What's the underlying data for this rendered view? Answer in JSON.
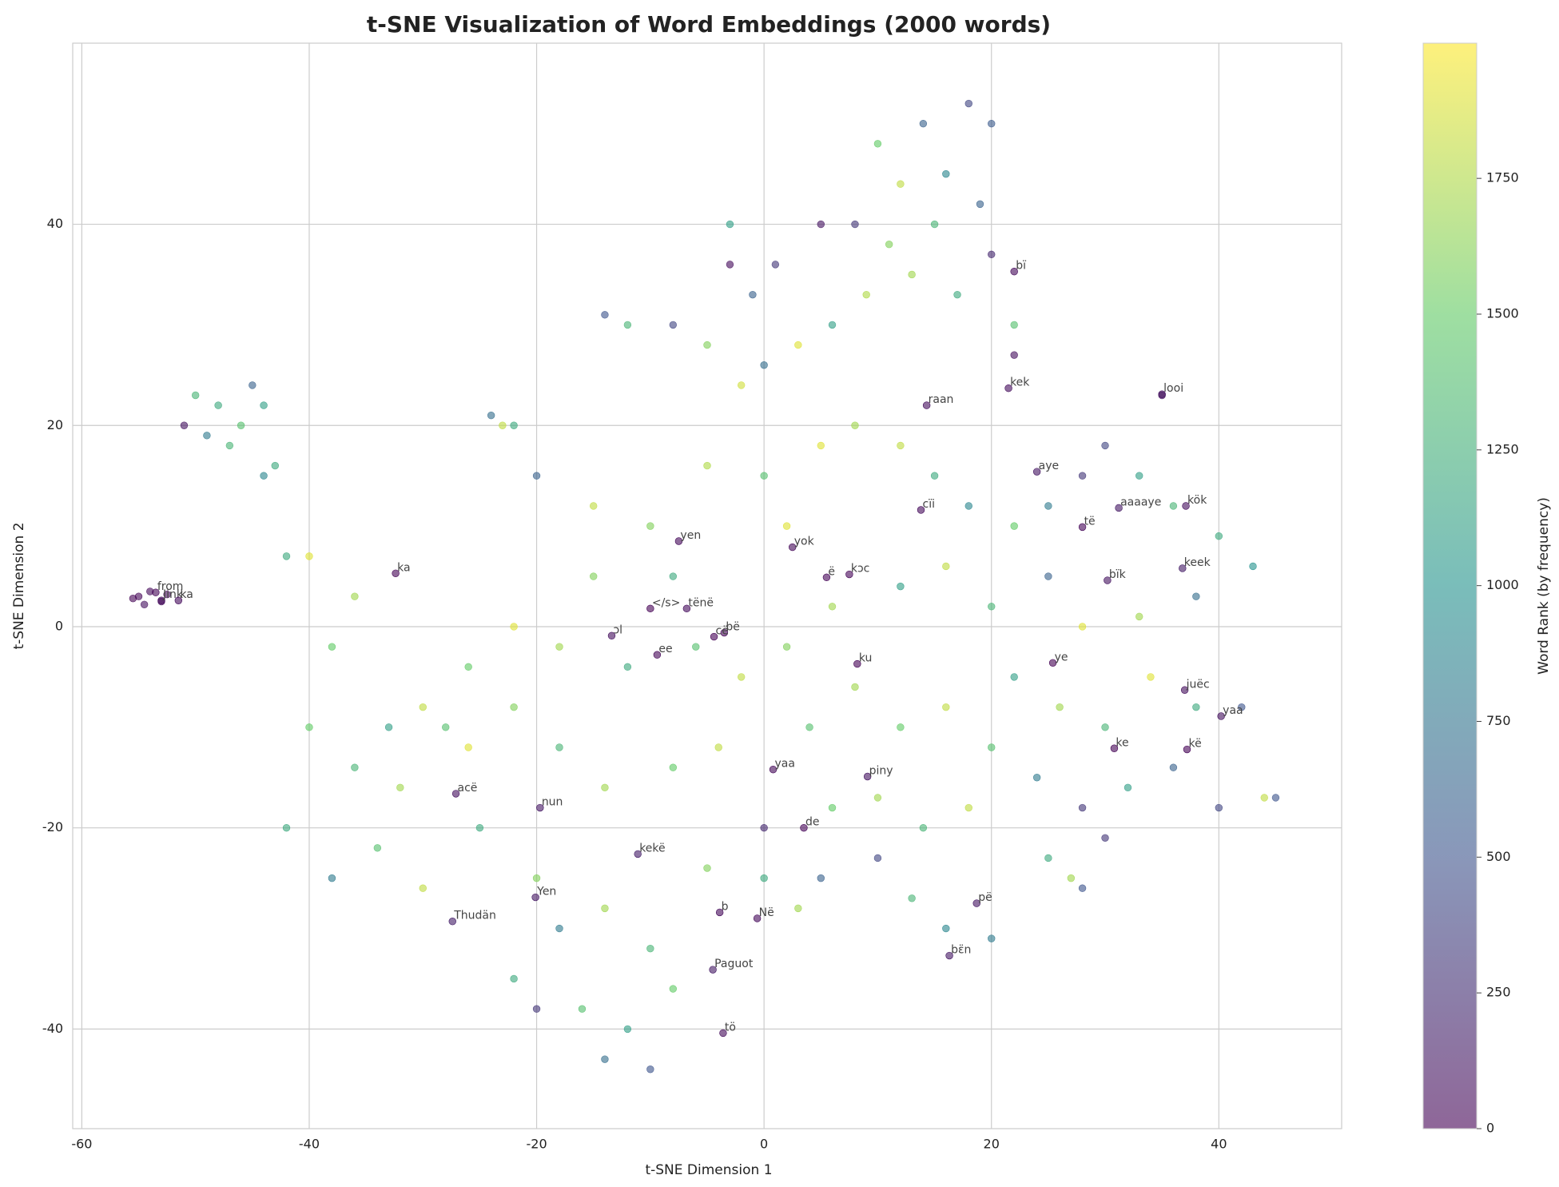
{
  "chart_data": {
    "type": "scatter",
    "title": "t-SNE Visualization of Word Embeddings (2000 words)",
    "xlabel": "t-SNE Dimension 1",
    "ylabel": "t-SNE Dimension 2",
    "colorbar_label": "Word Rank (by frequency)",
    "colormap": "viridis",
    "alpha": 0.6,
    "grid": true,
    "xlim": [
      -60.8,
      50.8
    ],
    "ylim": [
      -49.9,
      58
    ],
    "clim": [
      0,
      1999
    ],
    "xticks": [
      -60,
      -40,
      -20,
      0,
      20,
      40
    ],
    "yticks": [
      -40,
      -20,
      0,
      20,
      40
    ],
    "cticks": [
      0,
      250,
      500,
      750,
      1000,
      1250,
      1500,
      1750
    ],
    "x": [
      10,
      14,
      18,
      20,
      16,
      12,
      8,
      11,
      15,
      19,
      13,
      17,
      20,
      22,
      9,
      6,
      3,
      0,
      -2,
      -5,
      -8,
      -12,
      -14,
      -1,
      1,
      5,
      -3,
      -20,
      -15,
      -10,
      -5,
      0,
      5,
      8,
      12,
      15,
      18,
      22,
      25,
      28,
      30,
      33,
      36,
      40,
      43,
      38,
      33,
      28,
      25,
      20,
      16,
      12,
      6,
      2,
      -2,
      -6,
      -12,
      -18,
      -22,
      -26,
      -30,
      -33,
      -36,
      -40,
      -42,
      -38,
      -34,
      -30,
      -25,
      -20,
      -18,
      -14,
      -10,
      -8,
      -12,
      -14,
      -10,
      -16,
      -20,
      -22,
      -5,
      0,
      3,
      5,
      0,
      6,
      10,
      14,
      18,
      20,
      24,
      28,
      32,
      36,
      40,
      44,
      30,
      34,
      38,
      42,
      26,
      22,
      16,
      12,
      8,
      4,
      -4,
      -8,
      -14,
      -18,
      -22,
      -26,
      -32,
      10,
      13,
      16,
      20,
      25,
      28,
      27,
      -28,
      -38,
      -40,
      -42,
      -36,
      -23,
      -22,
      -24,
      -50,
      -48,
      -46,
      -44,
      -47,
      -43,
      -51,
      -45,
      -49,
      -44,
      -55,
      -54,
      -53,
      -55.5,
      -54.5,
      -52.5,
      -3,
      2,
      -8,
      -15,
      35,
      22,
      30,
      45
    ],
    "y": [
      48,
      50,
      52,
      50,
      45,
      44,
      40,
      38,
      40,
      42,
      35,
      33,
      37,
      30,
      33,
      30,
      28,
      26,
      24,
      28,
      30,
      30,
      31,
      33,
      36,
      40,
      36,
      15,
      12,
      10,
      16,
      15,
      18,
      20,
      18,
      15,
      12,
      10,
      12,
      15,
      18,
      15,
      12,
      9,
      6,
      3,
      1,
      0,
      5,
      2,
      6,
      4,
      2,
      -2,
      -5,
      -2,
      -4,
      -2,
      0,
      -4,
      -8,
      -10,
      -14,
      -10,
      -20,
      -25,
      -22,
      -26,
      -20,
      -25,
      -30,
      -28,
      -32,
      -36,
      -40,
      -43,
      -44,
      -38,
      -38,
      -35,
      -24,
      -25,
      -28,
      -25,
      -20,
      -18,
      -17,
      -20,
      -18,
      -12,
      -15,
      -18,
      -16,
      -14,
      -18,
      -17,
      -10,
      -5,
      -8,
      -8,
      -8,
      -5,
      -8,
      -10,
      -6,
      -10,
      -12,
      -14,
      -16,
      -12,
      -8,
      -12,
      -16,
      -23,
      -27,
      -30,
      -31,
      -23,
      -26,
      -25,
      -10,
      -2,
      7,
      7,
      3,
      20,
      20,
      21,
      23,
      22,
      20,
      22,
      18,
      16,
      20,
      24,
      19,
      15,
      3,
      3.5,
      2.5,
      2.8,
      2.2,
      3.2,
      40,
      10,
      5,
      5,
      23,
      27,
      -21,
      -17
    ],
    "rank": [
      1500,
      600,
      400,
      550,
      900,
      1800,
      300,
      1600,
      1300,
      600,
      1700,
      1200,
      200,
      1400,
      1750,
      1100,
      1900,
      700,
      1850,
      1600,
      400,
      1300,
      500,
      600,
      300,
      100,
      50,
      600,
      1800,
      1600,
      1750,
      1400,
      1900,
      1700,
      1800,
      1200,
      900,
      1500,
      800,
      300,
      400,
      1100,
      1300,
      1200,
      1000,
      700,
      1700,
      1900,
      600,
      1300,
      1800,
      1100,
      1700,
      1600,
      1800,
      1400,
      1200,
      1700,
      1900,
      1500,
      1800,
      1100,
      1300,
      1500,
      1200,
      800,
      1400,
      1800,
      1200,
      1600,
      800,
      1700,
      1300,
      1500,
      1100,
      700,
      500,
      1400,
      300,
      1200,
      1600,
      1200,
      1700,
      600,
      200,
      1500,
      1700,
      1300,
      1800,
      1400,
      800,
      300,
      1100,
      600,
      400,
      1800,
      1300,
      1900,
      1200,
      500,
      1700,
      1100,
      1800,
      1500,
      1700,
      1400,
      1800,
      1500,
      1700,
      1300,
      1600,
      1900,
      1700,
      400,
      1300,
      900,
      800,
      1200,
      500,
      1700,
      1400,
      1500,
      1900,
      1200,
      1700,
      1800,
      1200,
      700,
      1300,
      1200,
      1400,
      1100,
      1300,
      1200,
      100,
      600,
      800,
      900,
      20,
      40,
      60,
      10,
      80,
      30,
      1100,
      1900,
      1200,
      1600,
      100,
      60,
      300,
      500
    ],
    "annotations": [
      {
        "text": "bï",
        "x": 22.0,
        "y": 35.3,
        "rank": 40
      },
      {
        "text": "kek",
        "x": 21.5,
        "y": 23.7,
        "rank": 55
      },
      {
        "text": "raan",
        "x": 14.3,
        "y": 22.0,
        "rank": 70
      },
      {
        "text": "looi",
        "x": 35.0,
        "y": 23.1,
        "rank": 90
      },
      {
        "text": "aye",
        "x": 24.0,
        "y": 15.4,
        "rank": 110
      },
      {
        "text": "kök",
        "x": 37.1,
        "y": 12.0,
        "rank": 60
      },
      {
        "text": "aaaaye",
        "x": 31.2,
        "y": 11.8,
        "rank": 130
      },
      {
        "text": "cïi",
        "x": 13.8,
        "y": 11.6,
        "rank": 45
      },
      {
        "text": "të",
        "x": 28.0,
        "y": 9.9,
        "rank": 25
      },
      {
        "text": "yen",
        "x": -7.5,
        "y": 8.5,
        "rank": 35
      },
      {
        "text": "yok",
        "x": 2.5,
        "y": 7.9,
        "rank": 30
      },
      {
        "text": "keek",
        "x": 36.8,
        "y": 5.8,
        "rank": 140
      },
      {
        "text": "ë",
        "x": 5.5,
        "y": 4.9,
        "rank": 15
      },
      {
        "text": "kɔc",
        "x": 7.5,
        "y": 5.2,
        "rank": 20
      },
      {
        "text": "bïk",
        "x": 30.2,
        "y": 4.6,
        "rank": 95
      },
      {
        "text": "ka",
        "x": -32.4,
        "y": 5.3,
        "rank": 12
      },
      {
        "text": "</s>",
        "x": -10.0,
        "y": 1.8,
        "rank": 1
      },
      {
        "text": "tënë",
        "x": -6.8,
        "y": 1.8,
        "rank": 50
      },
      {
        "text": "ɔl",
        "x": -13.4,
        "y": -0.9,
        "rank": 75
      },
      {
        "text": "bë",
        "x": -3.5,
        "y": -0.6,
        "rank": 18
      },
      {
        "text": "cë",
        "x": -4.4,
        "y": -1.0,
        "rank": 8
      },
      {
        "text": "ee",
        "x": -9.4,
        "y": -2.8,
        "rank": 22
      },
      {
        "text": "ku",
        "x": 8.2,
        "y": -3.7,
        "rank": 5
      },
      {
        "text": "ye",
        "x": 25.4,
        "y": -3.6,
        "rank": 3
      },
      {
        "text": "juëc",
        "x": 37.0,
        "y": -6.3,
        "rank": 65
      },
      {
        "text": "yaa",
        "x": 40.2,
        "y": -8.9,
        "rank": 85
      },
      {
        "text": "ke",
        "x": 30.8,
        "y": -12.1,
        "rank": 10
      },
      {
        "text": "kë",
        "x": 37.2,
        "y": -12.2,
        "rank": 7
      },
      {
        "text": "yaa",
        "x": 0.8,
        "y": -14.2,
        "rank": 28
      },
      {
        "text": "piny",
        "x": 9.1,
        "y": -14.9,
        "rank": 100
      },
      {
        "text": "acë",
        "x": -27.1,
        "y": -16.6,
        "rank": 80
      },
      {
        "text": "nun",
        "x": -19.7,
        "y": -18.0,
        "rank": 120
      },
      {
        "text": "de",
        "x": 3.5,
        "y": -20.0,
        "rank": 14
      },
      {
        "text": "kekë",
        "x": -11.1,
        "y": -22.6,
        "rank": 150
      },
      {
        "text": "Yen",
        "x": -20.1,
        "y": -26.9,
        "rank": 115
      },
      {
        "text": "pë",
        "x": 18.7,
        "y": -27.5,
        "rank": 105
      },
      {
        "text": "Thudän",
        "x": -27.4,
        "y": -29.3,
        "rank": 160
      },
      {
        "text": "b",
        "x": -3.9,
        "y": -28.4,
        "rank": 33
      },
      {
        "text": "Në",
        "x": -0.6,
        "y": -29.0,
        "rank": 38
      },
      {
        "text": "bɛ̈n",
        "x": 16.3,
        "y": -32.7,
        "rank": 125
      },
      {
        "text": "Paguot",
        "x": -4.5,
        "y": -34.1,
        "rank": 135
      },
      {
        "text": "tö",
        "x": -3.6,
        "y": -40.4,
        "rank": 48
      },
      {
        "text": "from",
        "x": -53.5,
        "y": 3.4,
        "rank": 26
      },
      {
        "text": "Jink",
        "x": -53.0,
        "y": 2.6,
        "rank": 42
      },
      {
        "text": "ka",
        "x": -51.5,
        "y": 2.6,
        "rank": 52
      }
    ]
  }
}
